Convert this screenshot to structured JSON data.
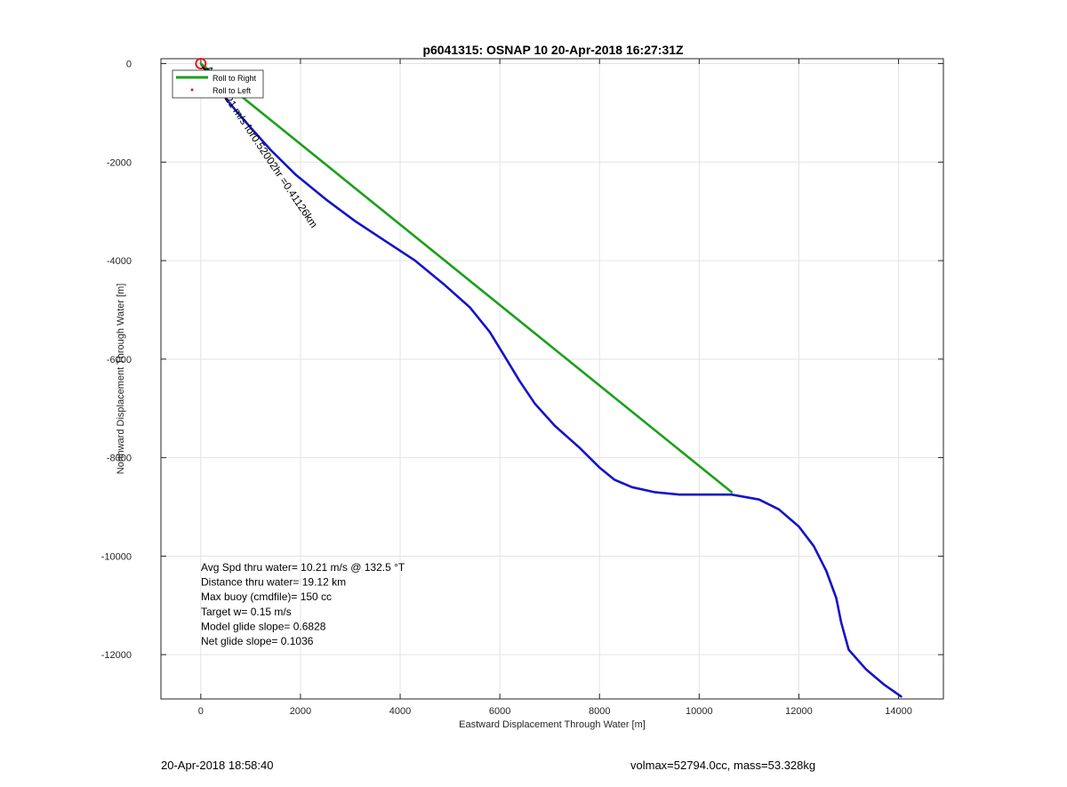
{
  "chart_data": {
    "type": "line",
    "title": "p6041315: OSNAP 10 20-Apr-2018 16:27:31Z",
    "xlabel": "Eastward Displacement Through Water [m]",
    "ylabel": "Northward Displacement Through Water [m]",
    "xlim": [
      -800,
      14900
    ],
    "ylim": [
      -12900,
      100
    ],
    "grid": true,
    "xticks": [
      0,
      2000,
      4000,
      6000,
      8000,
      10000,
      12000,
      14000
    ],
    "yticks": [
      0,
      -2000,
      -4000,
      -6000,
      -8000,
      -10000,
      -12000
    ],
    "legend": {
      "position": "top-left",
      "entries": [
        {
          "label": "Roll to Right",
          "color": "#1aa01a",
          "marker": "line"
        },
        {
          "label": "Roll to Left",
          "color": "#e01b1b",
          "marker": "dot"
        }
      ]
    },
    "series": [
      {
        "color": "#1414c8",
        "x": [
          0,
          150,
          300,
          500,
          700,
          1000,
          1400,
          1900,
          2500,
          3100,
          3700,
          4300,
          4900,
          5400,
          5800,
          6100,
          6400,
          6700,
          7100,
          7600,
          8000,
          8300,
          8650,
          9100,
          9600,
          10000,
          10650,
          11200,
          11600,
          12000,
          12300,
          12550,
          12750,
          12850,
          13000,
          13350,
          13700,
          14050
        ],
        "y": [
          0,
          -200,
          -450,
          -700,
          -950,
          -1300,
          -1750,
          -2250,
          -2750,
          -3200,
          -3600,
          -4000,
          -4500,
          -4950,
          -5450,
          -5950,
          -6450,
          -6900,
          -7350,
          -7800,
          -8200,
          -8450,
          -8600,
          -8700,
          -8750,
          -8750,
          -8750,
          -8850,
          -9050,
          -9400,
          -9800,
          -10300,
          -10850,
          -11350,
          -11900,
          -12300,
          -12600,
          -12850
        ]
      },
      {
        "color": "#1aa01a",
        "x": [
          0,
          10650
        ],
        "y": [
          0,
          -8700
        ]
      }
    ],
    "start_marker": {
      "x": 0,
      "y": 0,
      "color": "#e01b1b"
    },
    "annotation_rotated": "Avg 10.21 m/s for0.52002hr =0.41126km",
    "annotations": [
      "Avg Spd thru water= 10.21 m/s @ 132.5 °T",
      "Distance thru water= 19.12 km",
      "Max buoy (cmdfile)= 150 cc",
      "Target w= 0.15 m/s",
      "Model glide slope= 0.6828",
      "Net glide slope= 0.1036"
    ]
  },
  "footer": {
    "left": "20-Apr-2018 18:58:40",
    "right": "volmax=52794.0cc, mass=53.328kg"
  }
}
